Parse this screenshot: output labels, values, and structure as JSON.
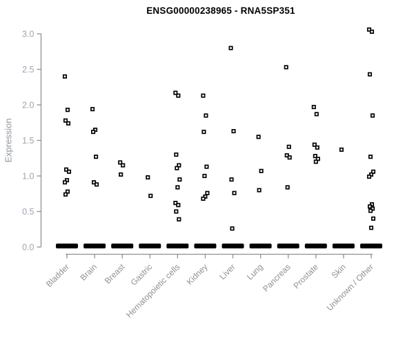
{
  "chart_data": {
    "type": "scatter",
    "title": "ENSG00000238965 - RNA5SP351",
    "ylabel": "Expression",
    "xlabel": "",
    "ylim": [
      0,
      3.1
    ],
    "yticks": [
      0.0,
      0.5,
      1.0,
      1.5,
      2.0,
      2.5,
      3.0
    ],
    "grid": false,
    "legend_position": "none",
    "marker": "small-open-black-square",
    "zero_cluster_note": "each category shows a thick black bar of many overlapping samples at expression 0",
    "categories": [
      "Bladder",
      "Brain",
      "Breast",
      "Gastric",
      "Hematopoietic cells",
      "Kidney",
      "Liver",
      "Lung",
      "Pancreas",
      "Prostate",
      "Skin",
      "Unknown / Other"
    ],
    "series": [
      {
        "category": "Bladder",
        "zero_cluster": true,
        "values": [
          2.4,
          1.93,
          1.78,
          1.74,
          1.09,
          1.06,
          0.94,
          0.91,
          0.78,
          0.74
        ]
      },
      {
        "category": "Brain",
        "zero_cluster": true,
        "values": [
          1.94,
          1.65,
          1.62,
          1.27,
          0.91,
          0.88
        ]
      },
      {
        "category": "Breast",
        "zero_cluster": true,
        "values": [
          1.19,
          1.15,
          1.02
        ]
      },
      {
        "category": "Gastric",
        "zero_cluster": true,
        "values": [
          0.98,
          0.72
        ]
      },
      {
        "category": "Hematopoietic cells",
        "zero_cluster": true,
        "values": [
          2.17,
          2.13,
          1.3,
          1.15,
          1.11,
          0.95,
          0.84,
          0.62,
          0.59,
          0.5,
          0.39
        ]
      },
      {
        "category": "Kidney",
        "zero_cluster": true,
        "values": [
          2.13,
          1.85,
          1.62,
          1.13,
          1.0,
          0.76,
          0.71,
          0.68
        ]
      },
      {
        "category": "Liver",
        "zero_cluster": true,
        "values": [
          2.8,
          1.63,
          0.95,
          0.76,
          0.26
        ]
      },
      {
        "category": "Lung",
        "zero_cluster": true,
        "values": [
          1.55,
          1.07,
          0.8
        ]
      },
      {
        "category": "Pancreas",
        "zero_cluster": true,
        "values": [
          2.53,
          1.41,
          1.29,
          1.26,
          0.84
        ]
      },
      {
        "category": "Prostate",
        "zero_cluster": true,
        "values": [
          1.97,
          1.87,
          1.44,
          1.4,
          1.28,
          1.24,
          1.2
        ]
      },
      {
        "category": "Skin",
        "zero_cluster": true,
        "values": [
          1.37
        ]
      },
      {
        "category": "Unknown / Other",
        "zero_cluster": true,
        "values": [
          3.06,
          3.03,
          2.43,
          1.85,
          1.27,
          1.06,
          1.02,
          0.99,
          0.6,
          0.57,
          0.54,
          0.51,
          0.4,
          0.27
        ]
      }
    ],
    "colors": {
      "points": "#000000",
      "zero_bar": "#000000",
      "axis_line": "#8c9196",
      "y_tick_labels": "#9aa5b0",
      "category_labels": "#8c9196",
      "title": "#000000",
      "background": "#ffffff"
    }
  }
}
